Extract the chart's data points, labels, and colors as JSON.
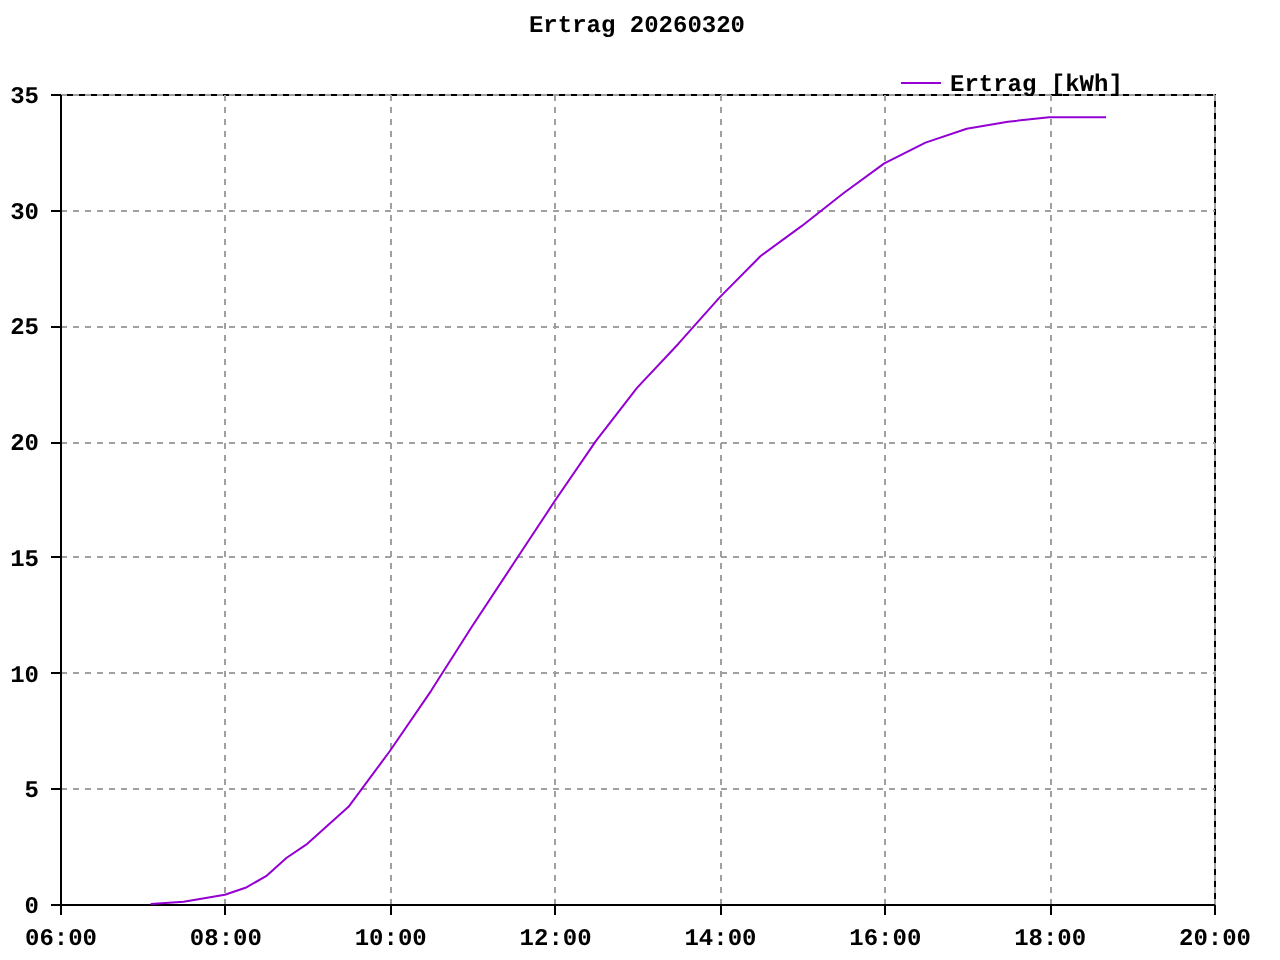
{
  "chart_data": {
    "type": "line",
    "title": "Ertrag 20260320",
    "x": [
      7.1,
      7.5,
      8,
      8.25,
      8.5,
      8.75,
      9,
      9.5,
      10,
      10.5,
      11,
      11.5,
      12,
      12.5,
      13,
      13.5,
      14,
      14.5,
      15,
      15.5,
      16,
      16.5,
      17,
      17.5,
      18,
      18.69
    ],
    "series": [
      {
        "name": "Ertrag [kWh]",
        "color": "#9400d3",
        "values": [
          0,
          0.1,
          0.4,
          0.7,
          1.2,
          2.0,
          2.6,
          4.2,
          6.6,
          9.2,
          12.0,
          14.7,
          17.4,
          20.0,
          22.3,
          24.2,
          26.2,
          28.0,
          29.3,
          30.7,
          32.0,
          32.9,
          33.5,
          33.8,
          34.0,
          34.0
        ]
      }
    ],
    "xlim": [
      6,
      20
    ],
    "xticks": [
      {
        "value": 6,
        "label": "06:00"
      },
      {
        "value": 8,
        "label": "08:00"
      },
      {
        "value": 10,
        "label": "10:00"
      },
      {
        "value": 12,
        "label": "12:00"
      },
      {
        "value": 14,
        "label": "14:00"
      },
      {
        "value": 16,
        "label": "16:00"
      },
      {
        "value": 18,
        "label": "18:00"
      },
      {
        "value": 20,
        "label": "20:00"
      }
    ],
    "ylim": [
      0,
      35
    ],
    "yticks": [
      0,
      5,
      10,
      15,
      20,
      25,
      30,
      35
    ],
    "grid": true,
    "legend": "top right",
    "marker": "none",
    "line_style": "solid"
  }
}
